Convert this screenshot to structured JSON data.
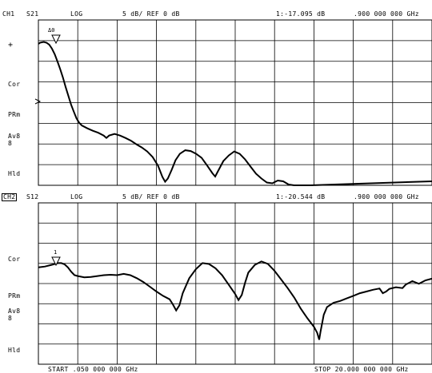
{
  "channel1": {
    "label": "CH1",
    "parameter": "S21",
    "format": "LOG",
    "scale_ref": "5 dB/ REF 0 dB",
    "marker_readout": "1:-17.095 dB",
    "marker_freq": ".900 000 000 GHz",
    "side_labels": [
      "+",
      "Cor",
      "PRm",
      "Av8",
      "8",
      "Hld"
    ],
    "marker_label": "Δ0",
    "trace_db": [
      [
        0.0,
        -2.0
      ],
      [
        0.3,
        -1.7
      ],
      [
        0.6,
        -1.6
      ],
      [
        1.0,
        -1.5
      ],
      [
        1.5,
        -1.7
      ],
      [
        2.0,
        -2.2
      ],
      [
        2.5,
        -3.2
      ],
      [
        3.0,
        -4.6
      ],
      [
        3.5,
        -6.4
      ],
      [
        4.0,
        -8.3
      ],
      [
        4.5,
        -10.4
      ],
      [
        5.0,
        -12.8
      ],
      [
        5.5,
        -15.0
      ],
      [
        6.0,
        -17.2
      ],
      [
        6.5,
        -19.0
      ],
      [
        7.0,
        -20.7
      ],
      [
        7.5,
        -21.8
      ],
      [
        8.0,
        -22.5
      ],
      [
        9.0,
        -23.2
      ],
      [
        10.0,
        -23.8
      ],
      [
        11.0,
        -24.3
      ],
      [
        12.0,
        -25.0
      ],
      [
        12.5,
        -25.6
      ],
      [
        13.0,
        -25.0
      ],
      [
        14.0,
        -24.6
      ],
      [
        15.0,
        -25.0
      ],
      [
        16.0,
        -25.6
      ],
      [
        17.0,
        -26.3
      ],
      [
        18.0,
        -27.2
      ],
      [
        19.0,
        -28.0
      ],
      [
        20.0,
        -29.0
      ],
      [
        21.0,
        -30.4
      ],
      [
        22.0,
        -32.6
      ],
      [
        22.8,
        -35.4
      ],
      [
        23.3,
        -36.6
      ],
      [
        23.8,
        -35.8
      ],
      [
        24.5,
        -33.6
      ],
      [
        25.2,
        -31.2
      ],
      [
        26.0,
        -29.6
      ],
      [
        27.0,
        -28.7
      ],
      [
        28.0,
        -28.9
      ],
      [
        29.0,
        -29.6
      ],
      [
        30.0,
        -30.6
      ],
      [
        31.0,
        -32.5
      ],
      [
        32.0,
        -34.5
      ],
      [
        32.5,
        -35.3
      ],
      [
        33.0,
        -34.0
      ],
      [
        34.0,
        -31.4
      ],
      [
        35.0,
        -30.0
      ],
      [
        36.0,
        -29.0
      ],
      [
        37.0,
        -29.6
      ],
      [
        38.0,
        -31.0
      ],
      [
        39.0,
        -32.8
      ],
      [
        40.0,
        -34.6
      ],
      [
        41.0,
        -35.8
      ],
      [
        42.0,
        -36.8
      ],
      [
        43.0,
        -37.0
      ],
      [
        44.0,
        -36.3
      ],
      [
        45.0,
        -36.5
      ],
      [
        46.0,
        -37.3
      ],
      [
        47.0,
        -37.5
      ],
      [
        50.0,
        -37.5
      ]
    ],
    "scale_top": 0,
    "scale_bottom": -37.5
  },
  "channel2": {
    "label": "CH2",
    "parameter": "S12",
    "format": "LOG",
    "scale_ref": "5 dB/ REF 0 dB",
    "marker_readout": "1:-20.544 dB",
    "marker_freq": ".900 000 000 GHz",
    "side_labels": [
      "Cor",
      "PRm",
      "Av8",
      "8",
      "Hld"
    ],
    "marker_label": "1",
    "trace_db": [
      [
        0.0,
        -20.0
      ],
      [
        1.0,
        -19.8
      ],
      [
        2.0,
        -19.4
      ],
      [
        3.0,
        -19.0
      ],
      [
        3.5,
        -19.0
      ],
      [
        4.0,
        -19.3
      ],
      [
        4.5,
        -20.0
      ],
      [
        5.0,
        -21.0
      ],
      [
        5.5,
        -21.8
      ],
      [
        6.0,
        -22.0
      ],
      [
        7.0,
        -22.3
      ],
      [
        8.0,
        -22.2
      ],
      [
        9.0,
        -22.0
      ],
      [
        10.0,
        -21.8
      ],
      [
        11.0,
        -21.7
      ],
      [
        12.0,
        -21.8
      ],
      [
        13.0,
        -21.5
      ],
      [
        14.0,
        -21.8
      ],
      [
        15.0,
        -22.5
      ],
      [
        16.0,
        -23.4
      ],
      [
        17.0,
        -24.5
      ],
      [
        18.0,
        -25.6
      ],
      [
        19.0,
        -26.6
      ],
      [
        20.0,
        -27.4
      ],
      [
        20.5,
        -28.6
      ],
      [
        21.0,
        -30.0
      ],
      [
        21.5,
        -28.8
      ],
      [
        22.0,
        -26.0
      ],
      [
        23.0,
        -22.5
      ],
      [
        24.0,
        -20.4
      ],
      [
        25.0,
        -19.0
      ],
      [
        26.0,
        -19.2
      ],
      [
        27.0,
        -20.2
      ],
      [
        28.0,
        -21.8
      ],
      [
        29.0,
        -24.0
      ],
      [
        30.0,
        -26.2
      ],
      [
        30.5,
        -27.6
      ],
      [
        31.0,
        -26.4
      ],
      [
        31.5,
        -23.6
      ],
      [
        32.0,
        -21.2
      ],
      [
        33.0,
        -19.4
      ],
      [
        34.0,
        -18.6
      ],
      [
        35.0,
        -19.2
      ],
      [
        36.0,
        -20.8
      ],
      [
        37.0,
        -22.8
      ],
      [
        38.0,
        -24.8
      ],
      [
        39.0,
        -27.0
      ],
      [
        40.0,
        -29.6
      ],
      [
        41.0,
        -31.8
      ],
      [
        42.0,
        -33.8
      ],
      [
        42.5,
        -35.2
      ],
      [
        42.8,
        -36.8
      ],
      [
        43.0,
        -35.0
      ],
      [
        43.5,
        -31.0
      ],
      [
        44.0,
        -29.2
      ],
      [
        45.0,
        -28.2
      ],
      [
        46.0,
        -27.8
      ],
      [
        47.0,
        -27.2
      ],
      [
        48.0,
        -26.6
      ],
      [
        49.0,
        -26.0
      ],
      [
        50.0,
        -25.6
      ],
      [
        51.0,
        -25.2
      ],
      [
        52.0,
        -24.9
      ],
      [
        52.5,
        -26.0
      ],
      [
        53.0,
        -25.6
      ],
      [
        53.5,
        -25.0
      ],
      [
        54.5,
        -24.6
      ],
      [
        55.5,
        -24.8
      ],
      [
        56.0,
        -24.0
      ],
      [
        57.0,
        -23.2
      ],
      [
        58.0,
        -23.8
      ],
      [
        59.0,
        -23.0
      ],
      [
        60.0,
        -22.6
      ]
    ],
    "scale_top": -5,
    "scale_bottom": -42.5
  },
  "footer": {
    "start_label": "START .050 000 000 GHz",
    "stop_label": "STOP 20.000 000 000 GHz"
  }
}
